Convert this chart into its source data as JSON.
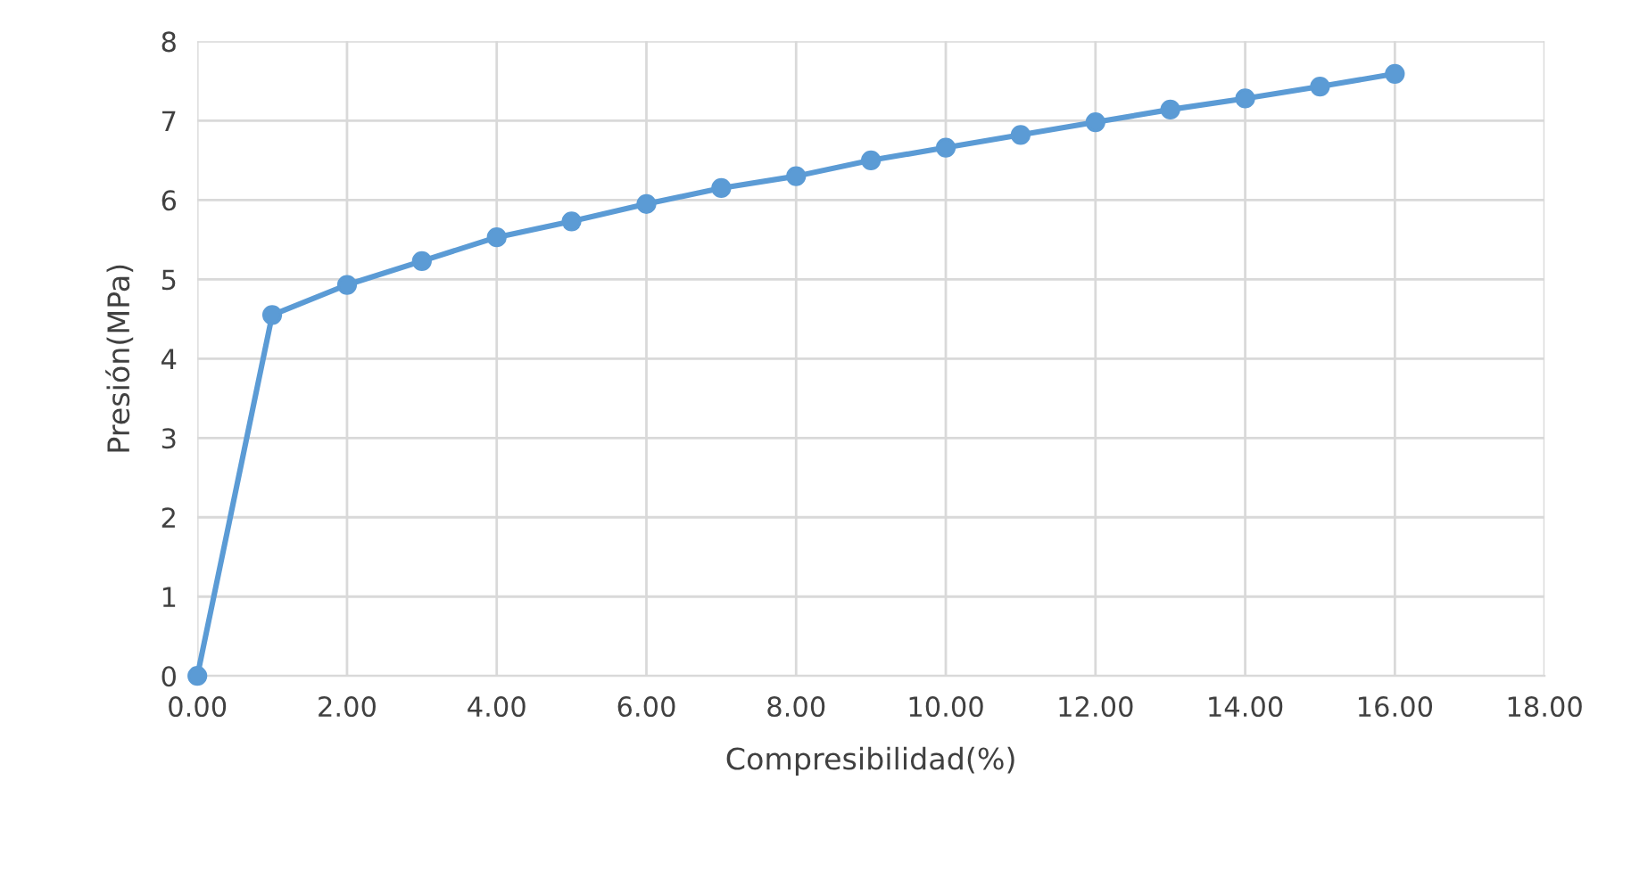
{
  "chart_data": {
    "type": "line",
    "xlabel": "Compresibilidad(%)",
    "ylabel": "Presión(MPa)",
    "series": [
      {
        "color": "#5b9bd5",
        "x": [
          0,
          1,
          2,
          3,
          4,
          5,
          6,
          7,
          8,
          9,
          10,
          11,
          12,
          13,
          14,
          15,
          16
        ],
        "values": [
          0,
          4.55,
          4.93,
          5.23,
          5.53,
          5.73,
          5.95,
          6.15,
          6.3,
          6.5,
          6.66,
          6.82,
          6.98,
          7.14,
          7.28,
          7.43,
          7.59
        ]
      }
    ],
    "xlim": [
      0,
      18
    ],
    "ylim": [
      0,
      8
    ],
    "xticks": [
      {
        "value": 0,
        "label": "0.00"
      },
      {
        "value": 2,
        "label": "2.00"
      },
      {
        "value": 4,
        "label": "4.00"
      },
      {
        "value": 6,
        "label": "6.00"
      },
      {
        "value": 8,
        "label": "8.00"
      },
      {
        "value": 10,
        "label": "10.00"
      },
      {
        "value": 12,
        "label": "12.00"
      },
      {
        "value": 14,
        "label": "14.00"
      },
      {
        "value": 16,
        "label": "16.00"
      },
      {
        "value": 18,
        "label": "18.00"
      }
    ],
    "yticks": [
      0,
      1,
      2,
      3,
      4,
      5,
      6,
      7,
      8
    ],
    "grid": true,
    "marker": "circle",
    "line_style": "solid"
  }
}
